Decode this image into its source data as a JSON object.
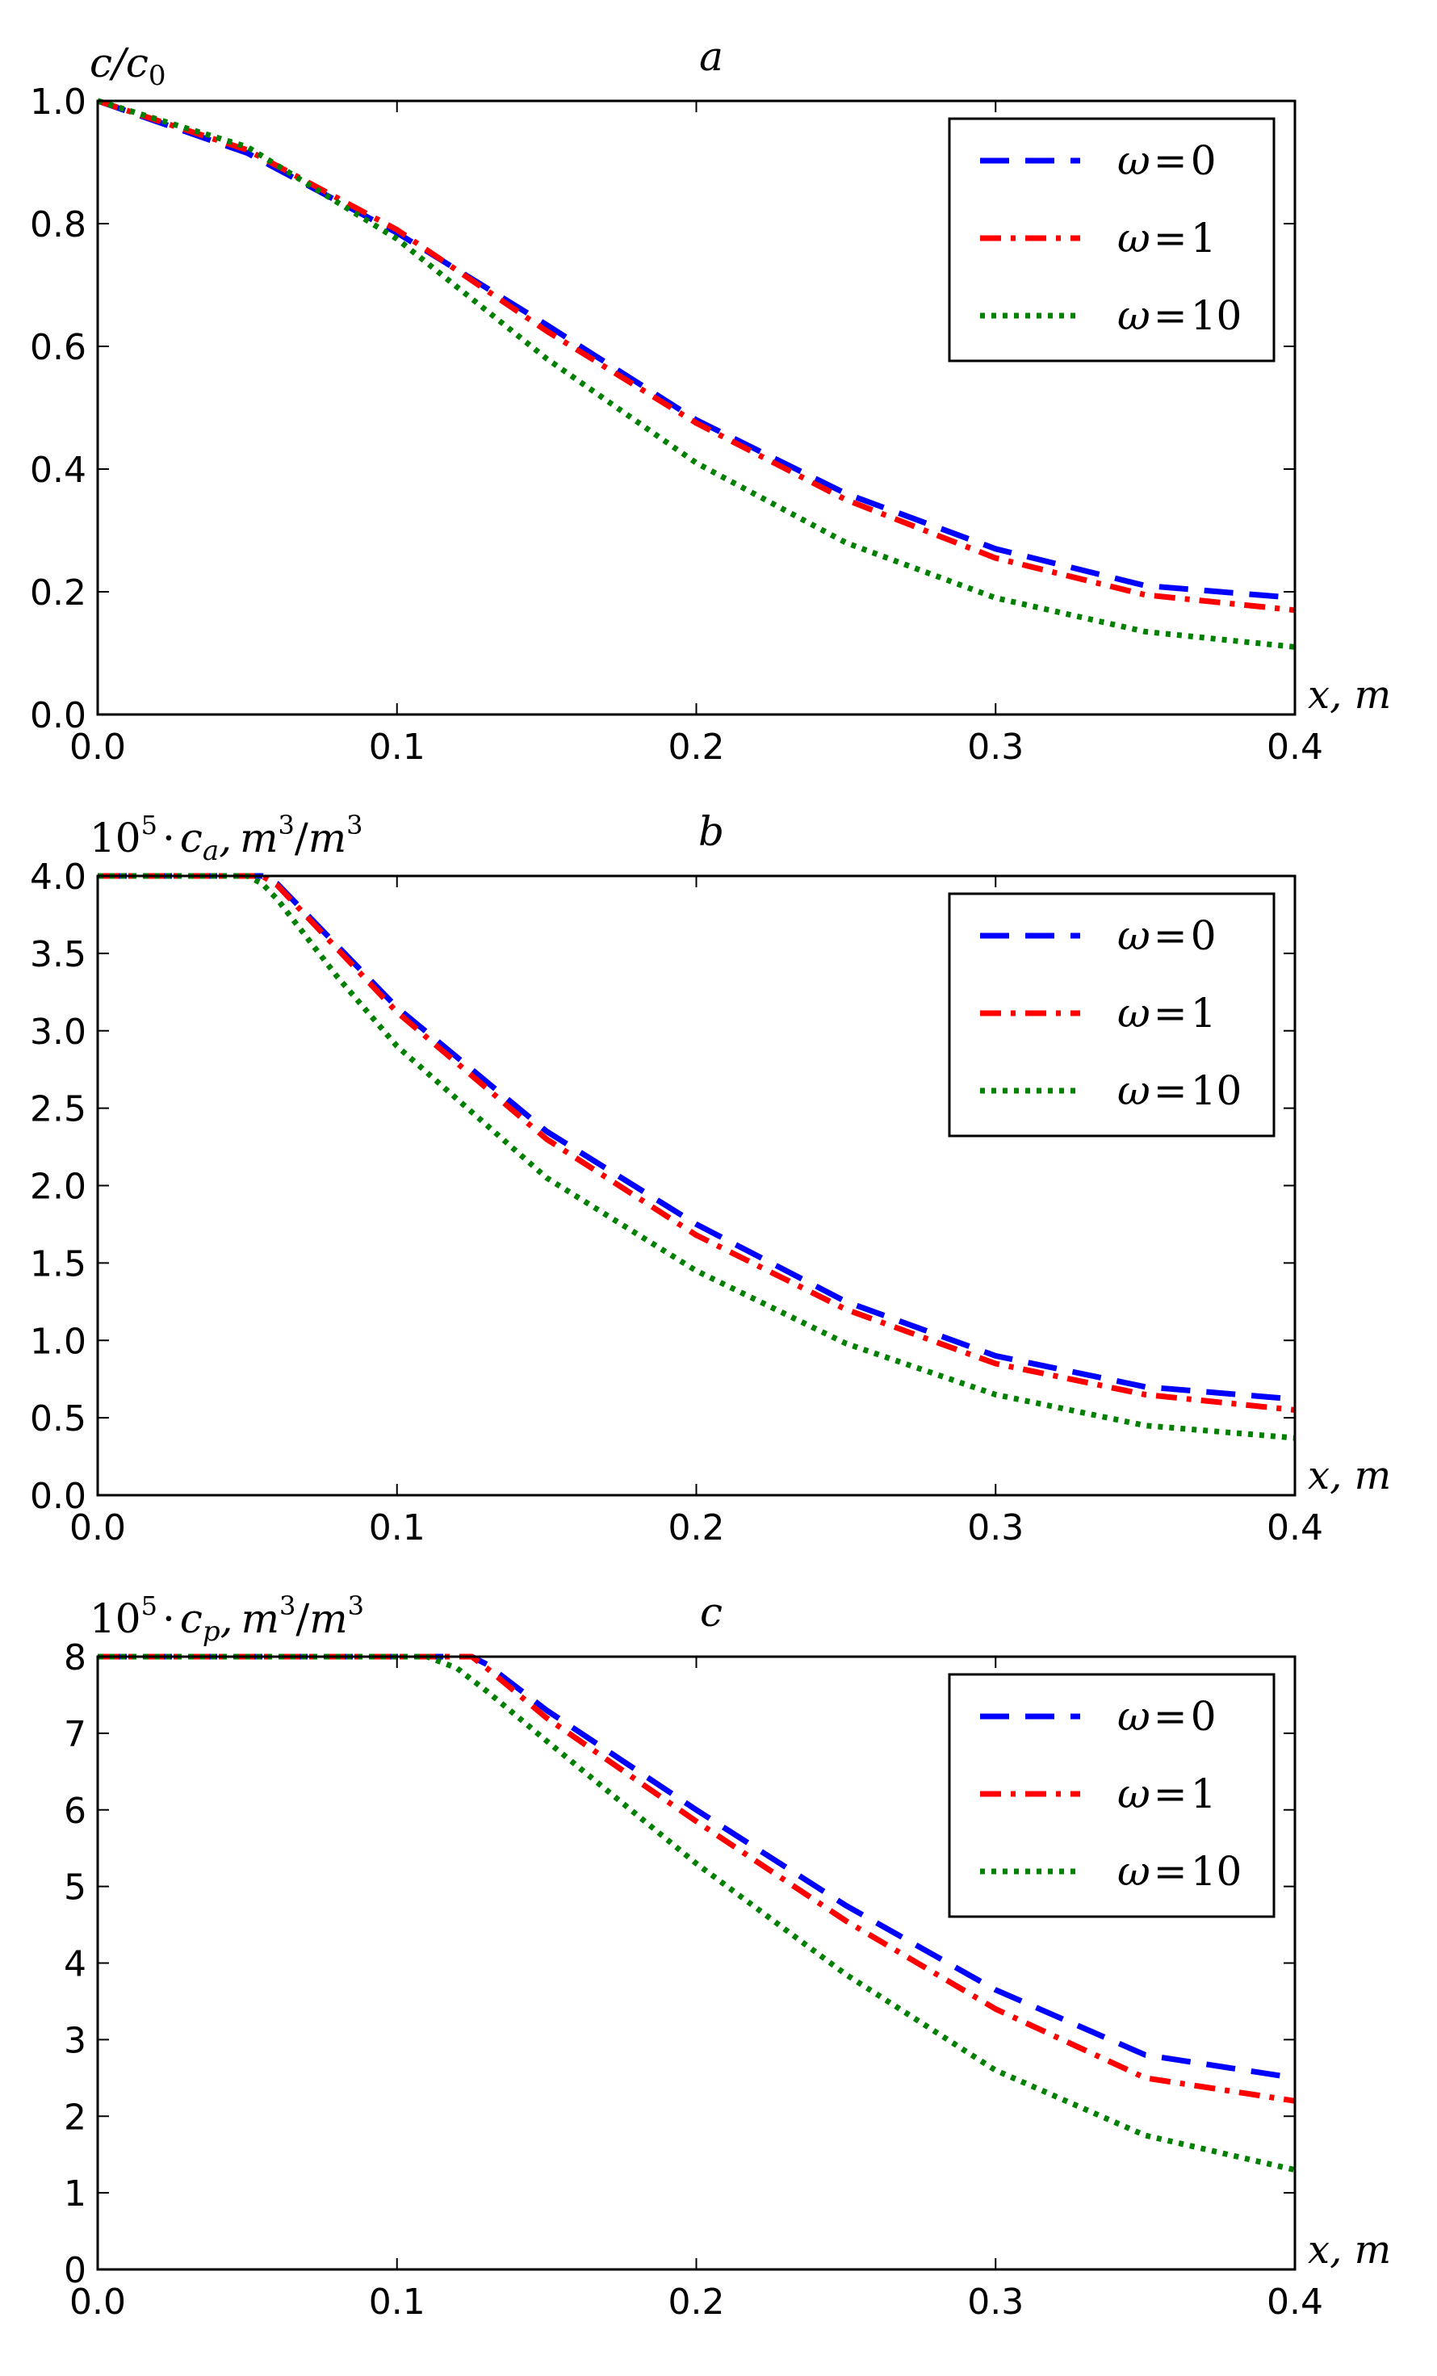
{
  "chart_data": [
    {
      "type": "line",
      "panel_label": "a",
      "ylabel_main": "c/c",
      "ylabel_sub": "0",
      "xlabel": "x, m",
      "xlim": [
        0.0,
        0.4
      ],
      "ylim": [
        0.0,
        1.0
      ],
      "xticks": [
        "0.0",
        "0.1",
        "0.2",
        "0.3",
        "0.4"
      ],
      "yticks": [
        "0.0",
        "0.2",
        "0.4",
        "0.6",
        "0.8",
        "1.0"
      ],
      "x": [
        0.0,
        0.05,
        0.1,
        0.15,
        0.2,
        0.25,
        0.3,
        0.35,
        0.4
      ],
      "legend_position": "top-right",
      "series": [
        {
          "name": "ω = 0",
          "greek": "ω",
          "value": "0",
          "color": "#0000ff",
          "style": "dashed",
          "values": [
            1.0,
            0.915,
            0.785,
            0.635,
            0.48,
            0.36,
            0.27,
            0.21,
            0.19
          ]
        },
        {
          "name": "ω = 1",
          "greek": "ω",
          "value": "1",
          "color": "#ff0000",
          "style": "dashdot",
          "values": [
            1.0,
            0.92,
            0.79,
            0.625,
            0.475,
            0.35,
            0.255,
            0.195,
            0.17
          ]
        },
        {
          "name": "ω = 10",
          "greek": "ω",
          "value": "10",
          "color": "#008000",
          "style": "dotted",
          "values": [
            1.0,
            0.925,
            0.775,
            0.58,
            0.41,
            0.28,
            0.19,
            0.135,
            0.11
          ]
        }
      ]
    },
    {
      "type": "line",
      "panel_label": "b",
      "ylabel_prefix": "10",
      "ylabel_exp": "5",
      "ylabel_var": "c",
      "ylabel_sub": "a",
      "ylabel_units": "m",
      "ylabel_units_exp": "3",
      "xlabel": "x, m",
      "xlim": [
        0.0,
        0.4
      ],
      "ylim": [
        0.0,
        4.0
      ],
      "xticks": [
        "0.0",
        "0.1",
        "0.2",
        "0.3",
        "0.4"
      ],
      "yticks": [
        "0.0",
        "0.5",
        "1.0",
        "1.5",
        "2.0",
        "2.5",
        "3.0",
        "3.5",
        "4.0"
      ],
      "x": [
        0.0,
        0.05,
        0.055,
        0.06,
        0.08,
        0.1,
        0.15,
        0.2,
        0.25,
        0.3,
        0.35,
        0.4
      ],
      "legend_position": "top-right",
      "series": [
        {
          "name": "ω = 0",
          "greek": "ω",
          "value": "0",
          "color": "#0000ff",
          "style": "dashed",
          "values": [
            4.0,
            4.0,
            4.0,
            3.95,
            3.55,
            3.15,
            2.35,
            1.75,
            1.25,
            0.9,
            0.7,
            0.62
          ]
        },
        {
          "name": "ω = 1",
          "greek": "ω",
          "value": "1",
          "color": "#ff0000",
          "style": "dashdot",
          "values": [
            4.0,
            4.0,
            4.0,
            3.94,
            3.53,
            3.12,
            2.3,
            1.68,
            1.2,
            0.85,
            0.65,
            0.55
          ]
        },
        {
          "name": "ω = 10",
          "greek": "ω",
          "value": "10",
          "color": "#008000",
          "style": "dotted",
          "values": [
            4.0,
            4.0,
            3.95,
            3.85,
            3.35,
            2.9,
            2.05,
            1.45,
            0.98,
            0.65,
            0.45,
            0.37
          ]
        }
      ]
    },
    {
      "type": "line",
      "panel_label": "c",
      "ylabel_prefix": "10",
      "ylabel_exp": "5",
      "ylabel_var": "c",
      "ylabel_sub": "p",
      "ylabel_units": "m",
      "ylabel_units_exp": "3",
      "xlabel": "x, m",
      "xlim": [
        0.0,
        0.4
      ],
      "ylim": [
        0.0,
        8.0
      ],
      "xticks": [
        "0.0",
        "0.1",
        "0.2",
        "0.3",
        "0.4"
      ],
      "yticks": [
        "0",
        "1",
        "2",
        "3",
        "4",
        "5",
        "6",
        "7",
        "8"
      ],
      "x": [
        0.0,
        0.05,
        0.1,
        0.11,
        0.12,
        0.125,
        0.13,
        0.15,
        0.2,
        0.25,
        0.3,
        0.35,
        0.4
      ],
      "legend_position": "top-right",
      "series": [
        {
          "name": "ω = 0",
          "greek": "ω",
          "value": "0",
          "color": "#0000ff",
          "style": "dashed",
          "values": [
            8.0,
            8.0,
            8.0,
            8.0,
            8.0,
            8.0,
            7.9,
            7.3,
            6.0,
            4.75,
            3.65,
            2.8,
            2.5
          ]
        },
        {
          "name": "ω = 1",
          "greek": "ω",
          "value": "1",
          "color": "#ff0000",
          "style": "dashdot",
          "values": [
            8.0,
            8.0,
            8.0,
            8.0,
            8.0,
            8.0,
            7.85,
            7.2,
            5.85,
            4.55,
            3.4,
            2.5,
            2.2
          ]
        },
        {
          "name": "ω = 10",
          "greek": "ω",
          "value": "10",
          "color": "#008000",
          "style": "dotted",
          "values": [
            8.0,
            8.0,
            8.0,
            8.0,
            7.85,
            7.7,
            7.55,
            6.9,
            5.3,
            3.85,
            2.6,
            1.75,
            1.3
          ]
        }
      ]
    }
  ]
}
